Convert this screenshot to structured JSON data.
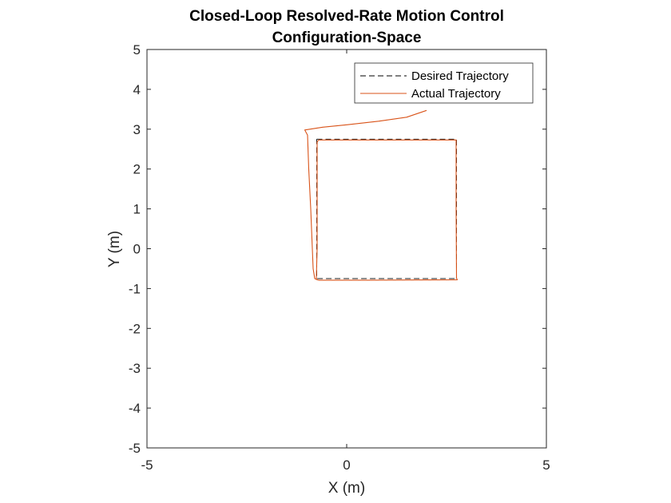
{
  "chart_data": {
    "type": "line",
    "title": [
      "Closed-Loop Resolved-Rate Motion Control",
      "Configuration-Space"
    ],
    "xlabel": "X (m)",
    "ylabel": "Y (m)",
    "xlim": [
      -5,
      5
    ],
    "ylim": [
      -5,
      5
    ],
    "xticks": [
      -5,
      0,
      5
    ],
    "yticks": [
      -5,
      -4,
      -3,
      -2,
      -1,
      0,
      1,
      2,
      3,
      4,
      5
    ],
    "xtick_labels": [
      "-5",
      "0",
      "5"
    ],
    "ytick_labels": [
      "-5",
      "-4",
      "-3",
      "-2",
      "-1",
      "0",
      "1",
      "2",
      "3",
      "4",
      "5"
    ],
    "grid": false,
    "legend_position": "top-right",
    "series": [
      {
        "name": "Desired Trajectory",
        "style": "dashed",
        "color": "#000000",
        "x": [
          -0.75,
          2.75,
          2.75,
          -0.75,
          -0.75
        ],
        "y": [
          2.75,
          2.75,
          -0.75,
          -0.75,
          2.75
        ]
      },
      {
        "name": "Actual Trajectory",
        "style": "solid",
        "color": "#D95319",
        "x": [
          2.0,
          1.5,
          0.8,
          0.0,
          -0.6,
          -1.05,
          -0.98,
          -0.95,
          -0.9,
          -0.86,
          -0.84,
          -0.8,
          -0.74,
          -0.7,
          0.5,
          2.77,
          2.75,
          2.74,
          2.74,
          -0.7,
          -0.74,
          -0.74,
          -0.76,
          -0.75
        ],
        "y": [
          3.47,
          3.3,
          3.2,
          3.11,
          3.05,
          2.98,
          2.85,
          2.0,
          1.0,
          0.0,
          -0.5,
          -0.75,
          -0.78,
          -0.79,
          -0.79,
          -0.78,
          -0.74,
          1.0,
          2.73,
          2.73,
          2.68,
          0.0,
          -0.74,
          -0.76
        ]
      }
    ]
  }
}
